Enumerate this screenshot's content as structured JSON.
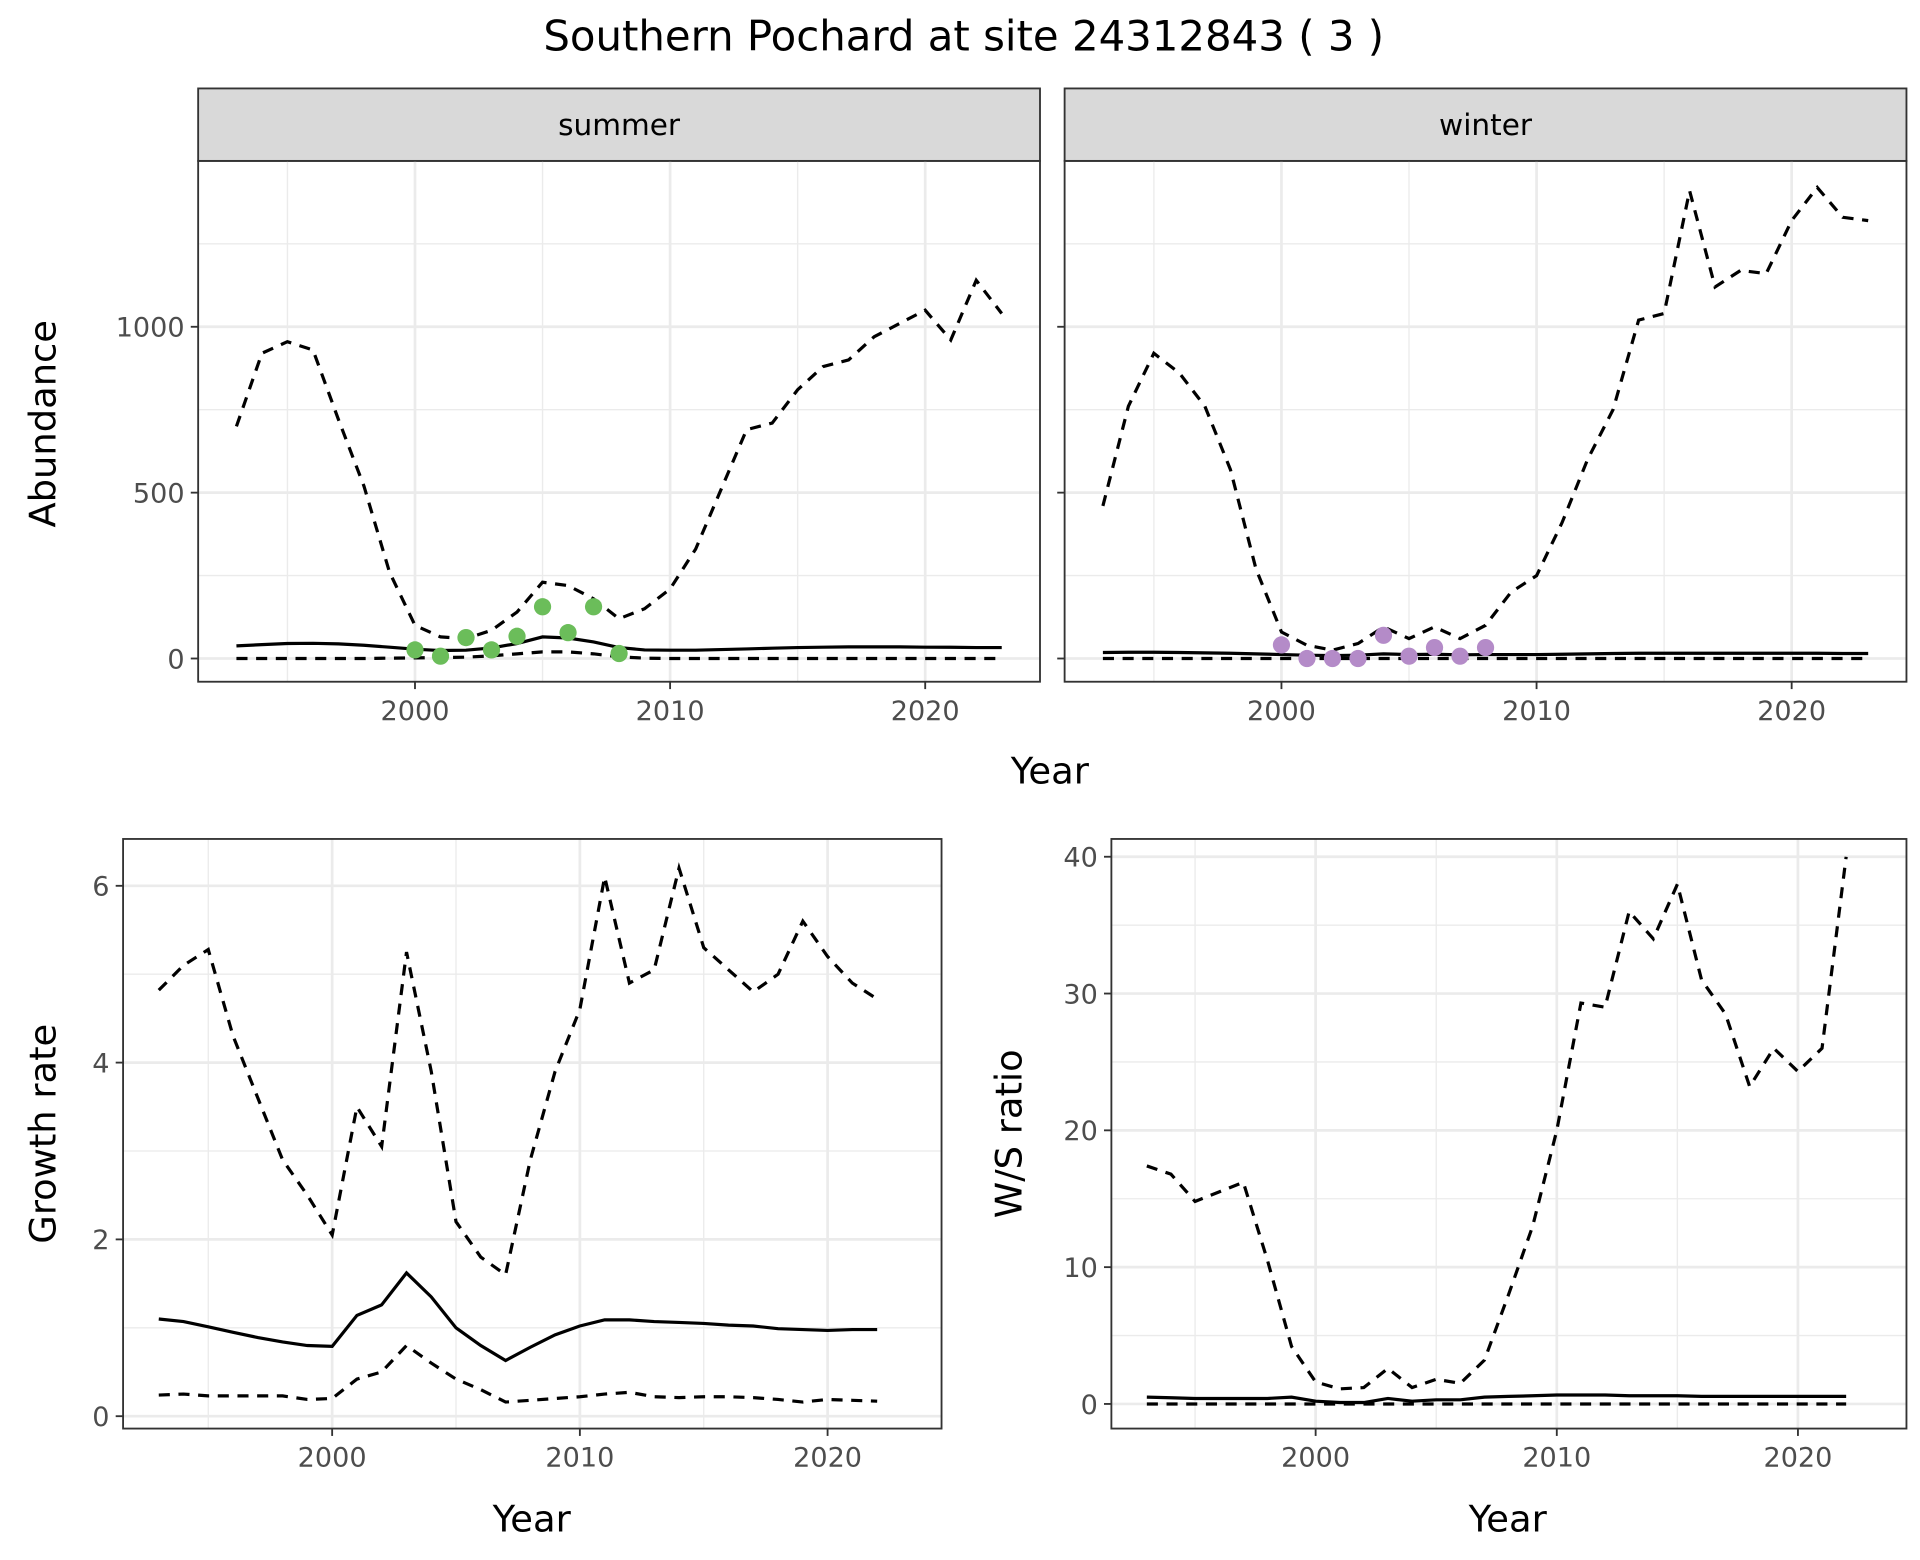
{
  "title": "Southern Pochard at site 24312843 ( 3 )",
  "colors": {
    "summer_points": "#6bbd5a",
    "winter_points": "#b48bc8",
    "strip_bg": "#d9d9d9",
    "grid": "#ebebeb"
  },
  "chart_data": [
    {
      "type": "line",
      "id": "summer",
      "strip": "summer",
      "xlabel": "Year",
      "ylabel": "Abundance",
      "xlim": [
        1991.5,
        2024.5
      ],
      "ylim": [
        -70,
        1500
      ],
      "xticks": [
        2000,
        2010,
        2020
      ],
      "xtick_labels": [
        "2000",
        "2010",
        "2020"
      ],
      "yticks": [
        0,
        500,
        1000
      ],
      "ytick_labels": [
        "0",
        "500",
        "1000"
      ],
      "grid": true,
      "x": [
        1993,
        1994,
        1995,
        1996,
        1997,
        1998,
        1999,
        2000,
        2001,
        2002,
        2003,
        2004,
        2005,
        2006,
        2007,
        2008,
        2009,
        2010,
        2011,
        2012,
        2013,
        2014,
        2015,
        2016,
        2017,
        2018,
        2019,
        2020,
        2021,
        2022,
        2023
      ],
      "series": [
        {
          "name": "upper",
          "style": "dashed",
          "values": [
            700,
            920,
            955,
            930,
            720,
            520,
            260,
            100,
            65,
            60,
            85,
            140,
            230,
            220,
            180,
            120,
            150,
            210,
            330,
            510,
            690,
            710,
            810,
            880,
            900,
            970,
            1010,
            1050,
            960,
            1140,
            1040
          ]
        },
        {
          "name": "mean",
          "style": "solid",
          "values": [
            38,
            42,
            45,
            46,
            44,
            40,
            34,
            28,
            24,
            25,
            32,
            45,
            65,
            62,
            50,
            33,
            26,
            25,
            25,
            27,
            29,
            31,
            33,
            34,
            35,
            35,
            35,
            34,
            34,
            33,
            33
          ]
        },
        {
          "name": "lower",
          "style": "dashed",
          "values": [
            0,
            0,
            0,
            0,
            0,
            0,
            1,
            2,
            3,
            4,
            8,
            14,
            20,
            20,
            14,
            5,
            1,
            0,
            0,
            0,
            0,
            0,
            0,
            0,
            0,
            0,
            0,
            0,
            0,
            0,
            0
          ]
        }
      ],
      "points": {
        "x": [
          2000,
          2001,
          2002,
          2003,
          2004,
          2005,
          2006,
          2007,
          2008
        ],
        "y": [
          26,
          7,
          63,
          26,
          67,
          156,
          78,
          156,
          15
        ]
      }
    },
    {
      "type": "line",
      "id": "winter",
      "strip": "winter",
      "xlim": [
        1991.5,
        2024.5
      ],
      "ylim": [
        -70,
        1500
      ],
      "xticks": [
        2000,
        2010,
        2020
      ],
      "xtick_labels": [
        "2000",
        "2010",
        "2020"
      ],
      "yticks": [
        0,
        500,
        1000
      ],
      "grid": true,
      "x": [
        1993,
        1994,
        1995,
        1996,
        1997,
        1998,
        1999,
        2000,
        2001,
        2002,
        2003,
        2004,
        2005,
        2006,
        2007,
        2008,
        2009,
        2010,
        2011,
        2012,
        2013,
        2014,
        2015,
        2016,
        2017,
        2018,
        2019,
        2020,
        2021,
        2022,
        2023
      ],
      "series": [
        {
          "name": "upper",
          "style": "dashed",
          "values": [
            460,
            760,
            920,
            860,
            760,
            570,
            270,
            80,
            40,
            25,
            45,
            95,
            60,
            95,
            60,
            100,
            200,
            250,
            410,
            600,
            750,
            1020,
            1040,
            1410,
            1120,
            1170,
            1160,
            1320,
            1420,
            1330,
            1320
          ]
        },
        {
          "name": "mean",
          "style": "solid",
          "values": [
            18,
            19,
            19,
            18,
            17,
            16,
            14,
            12,
            10,
            9,
            10,
            14,
            12,
            13,
            11,
            12,
            12,
            12,
            13,
            14,
            15,
            16,
            16,
            16,
            16,
            16,
            16,
            16,
            16,
            15,
            15
          ]
        },
        {
          "name": "lower",
          "style": "dashed",
          "values": [
            0,
            0,
            0,
            0,
            0,
            0,
            0,
            0,
            0,
            0,
            0,
            0,
            0,
            0,
            0,
            0,
            0,
            0,
            0,
            0,
            0,
            0,
            0,
            0,
            0,
            0,
            0,
            0,
            0,
            0,
            0
          ]
        }
      ],
      "points": {
        "x": [
          2000,
          2001,
          2002,
          2003,
          2004,
          2005,
          2006,
          2007,
          2008
        ],
        "y": [
          41,
          0,
          0,
          0,
          70,
          7,
          33,
          7,
          33
        ]
      }
    },
    {
      "type": "line",
      "id": "growth",
      "xlabel": "Year",
      "ylabel": "Growth rate",
      "xlim": [
        1991.56,
        2024.6
      ],
      "ylim": [
        -0.14,
        6.53
      ],
      "xticks": [
        2000,
        2010,
        2020
      ],
      "xtick_labels": [
        "2000",
        "2010",
        "2020"
      ],
      "yticks": [
        0,
        2,
        4,
        6
      ],
      "ytick_labels": [
        "0",
        "2",
        "4",
        "6"
      ],
      "grid": true,
      "x": [
        1993,
        1994,
        1995,
        1996,
        1997,
        1998,
        1999,
        2000,
        2001,
        2002,
        2003,
        2004,
        2005,
        2006,
        2007,
        2008,
        2009,
        2010,
        2011,
        2012,
        2013,
        2014,
        2015,
        2016,
        2017,
        2018,
        2019,
        2020,
        2021,
        2022
      ],
      "series": [
        {
          "name": "upper",
          "style": "dashed",
          "values": [
            4.82,
            5.1,
            5.28,
            4.3,
            3.6,
            2.9,
            2.5,
            2.05,
            3.5,
            3.05,
            5.25,
            3.9,
            2.2,
            1.8,
            1.6,
            2.9,
            3.9,
            4.6,
            6.1,
            4.9,
            5.05,
            6.2,
            5.3,
            5.05,
            4.8,
            5.0,
            5.6,
            5.2,
            4.9,
            4.72
          ]
        },
        {
          "name": "mean",
          "style": "solid",
          "values": [
            1.1,
            1.07,
            1.01,
            0.95,
            0.89,
            0.84,
            0.8,
            0.79,
            1.14,
            1.26,
            1.62,
            1.35,
            1.0,
            0.8,
            0.63,
            0.78,
            0.92,
            1.02,
            1.09,
            1.09,
            1.07,
            1.06,
            1.05,
            1.03,
            1.02,
            0.99,
            0.98,
            0.97,
            0.98,
            0.98
          ]
        },
        {
          "name": "lower",
          "style": "dashed",
          "values": [
            0.24,
            0.25,
            0.23,
            0.23,
            0.23,
            0.23,
            0.19,
            0.2,
            0.42,
            0.5,
            0.8,
            0.6,
            0.42,
            0.3,
            0.16,
            0.18,
            0.2,
            0.22,
            0.25,
            0.27,
            0.22,
            0.21,
            0.22,
            0.22,
            0.21,
            0.19,
            0.16,
            0.19,
            0.18,
            0.17
          ]
        }
      ]
    },
    {
      "type": "line",
      "id": "ratio",
      "xlabel": "Year",
      "ylabel": "W/S ratio",
      "xlim": [
        1991.53,
        2024.5
      ],
      "ylim": [
        -1.8,
        41.3
      ],
      "xticks": [
        2000,
        2010,
        2020
      ],
      "xtick_labels": [
        "2000",
        "2010",
        "2020"
      ],
      "yticks": [
        0,
        10,
        20,
        30,
        40
      ],
      "ytick_labels": [
        "0",
        "10",
        "20",
        "30",
        "40"
      ],
      "grid": true,
      "x": [
        1993,
        1994,
        1995,
        1996,
        1997,
        1998,
        1999,
        2000,
        2001,
        2002,
        2003,
        2004,
        2005,
        2006,
        2007,
        2008,
        2009,
        2010,
        2011,
        2012,
        2013,
        2014,
        2015,
        2016,
        2017,
        2018,
        2019,
        2020,
        2021,
        2022
      ],
      "series": [
        {
          "name": "upper",
          "style": "dashed",
          "values": [
            17.4,
            16.8,
            14.8,
            15.5,
            16.2,
            10.5,
            4.2,
            1.6,
            1.1,
            1.2,
            2.6,
            1.2,
            1.8,
            1.5,
            3.2,
            8,
            13,
            20,
            29.3,
            29,
            36,
            34,
            38,
            31,
            28.5,
            23.2,
            26,
            24.3,
            26,
            40
          ]
        },
        {
          "name": "mean",
          "style": "solid",
          "values": [
            0.5,
            0.45,
            0.4,
            0.4,
            0.4,
            0.4,
            0.5,
            0.2,
            0.1,
            0.1,
            0.4,
            0.2,
            0.3,
            0.3,
            0.5,
            0.55,
            0.6,
            0.65,
            0.65,
            0.65,
            0.6,
            0.6,
            0.6,
            0.55,
            0.55,
            0.55,
            0.55,
            0.55,
            0.55,
            0.55
          ]
        },
        {
          "name": "lower",
          "style": "dashed",
          "values": [
            0,
            0,
            0,
            0,
            0,
            0,
            0,
            0,
            0,
            0,
            0,
            0,
            0,
            0,
            0,
            0,
            0,
            0,
            0,
            0,
            0,
            0,
            0,
            0,
            0,
            0,
            0,
            0,
            0,
            0
          ]
        }
      ]
    }
  ]
}
